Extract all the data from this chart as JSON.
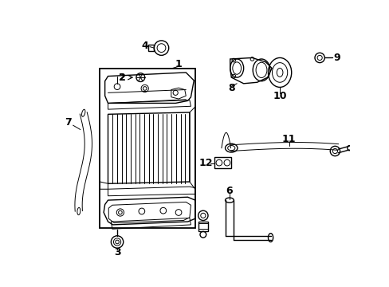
{
  "bg_color": "#ffffff",
  "line_color": "#000000",
  "figsize": [
    4.89,
    3.6
  ],
  "dpi": 100,
  "lw_main": 1.0,
  "lw_thin": 0.7,
  "lw_thick": 1.3
}
